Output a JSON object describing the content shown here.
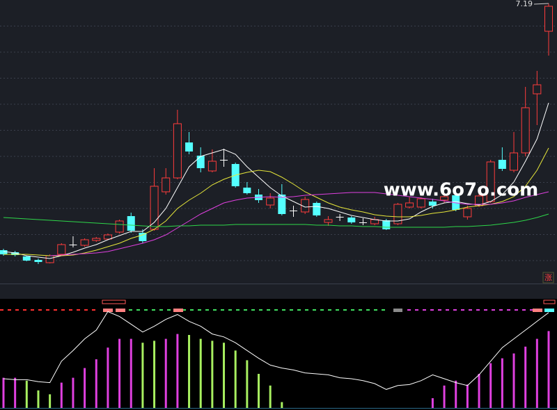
{
  "chart_data": {
    "type": "candlestick",
    "ylim": [
      3.14,
      7.24
    ],
    "up_color": "#ff3c3c",
    "down_color": "#54ffff",
    "flat_color": "#ffffff",
    "open": [
      3.64,
      3.61,
      3.55,
      3.5,
      3.46,
      3.58,
      3.72,
      3.71,
      3.78,
      3.8,
      3.9,
      4.13,
      3.89,
      3.94,
      4.48,
      4.68,
      5.19,
      5.0,
      4.78,
      4.94,
      4.88,
      4.54,
      4.44,
      4.29,
      4.44,
      4.21,
      4.19,
      4.32,
      4.04,
      4.12,
      4.11,
      4.04,
      4.02,
      4.07,
      4.02,
      4.26,
      4.26,
      4.34,
      4.36,
      4.43,
      4.12,
      4.28,
      4.34,
      4.94,
      4.79,
      5.04,
      5.89,
      6.79
    ],
    "high": [
      3.66,
      3.63,
      3.56,
      3.52,
      3.58,
      3.74,
      3.84,
      3.81,
      3.83,
      3.88,
      4.08,
      4.18,
      3.94,
      4.82,
      4.82,
      5.66,
      5.34,
      5.12,
      5.09,
      5.1,
      4.9,
      4.62,
      4.52,
      4.46,
      4.59,
      4.28,
      4.41,
      4.34,
      4.13,
      4.16,
      4.13,
      4.1,
      4.12,
      4.09,
      4.32,
      4.4,
      4.4,
      4.38,
      4.46,
      4.46,
      4.28,
      4.46,
      4.94,
      5.12,
      5.34,
      5.99,
      6.22,
      7.19
    ],
    "low": [
      3.56,
      3.55,
      3.48,
      3.44,
      3.45,
      3.57,
      3.68,
      3.69,
      3.76,
      3.79,
      3.88,
      3.89,
      3.74,
      3.92,
      4.44,
      4.66,
      5.02,
      4.76,
      4.76,
      4.84,
      4.54,
      4.44,
      4.32,
      4.24,
      4.14,
      4.12,
      4.16,
      4.12,
      3.99,
      4.06,
      4.02,
      4.0,
      4.0,
      3.93,
      4.0,
      4.24,
      4.24,
      4.24,
      4.32,
      4.2,
      4.08,
      4.26,
      4.32,
      4.78,
      4.76,
      4.99,
      5.44,
      6.44
    ],
    "close": [
      3.58,
      3.57,
      3.49,
      3.47,
      3.56,
      3.72,
      3.72,
      3.79,
      3.81,
      3.86,
      4.06,
      3.92,
      3.77,
      4.56,
      4.68,
      5.46,
      5.06,
      4.82,
      4.92,
      4.94,
      4.56,
      4.46,
      4.36,
      4.39,
      4.16,
      4.21,
      4.37,
      4.14,
      4.08,
      4.12,
      4.04,
      4.04,
      4.08,
      3.94,
      4.3,
      4.32,
      4.38,
      4.28,
      4.41,
      4.22,
      4.24,
      4.42,
      4.91,
      4.81,
      5.04,
      5.69,
      6.02,
      7.15
    ],
    "ma_lines": [
      {
        "color": "#ffffff",
        "values": [
          3.62,
          3.6,
          3.56,
          3.54,
          3.52,
          3.56,
          3.61,
          3.67,
          3.72,
          3.79,
          3.85,
          3.91,
          3.91,
          4.04,
          4.24,
          4.54,
          4.84,
          4.99,
          5.04,
          5.09,
          5.02,
          4.84,
          4.69,
          4.54,
          4.42,
          4.34,
          4.26,
          4.27,
          4.24,
          4.19,
          4.14,
          4.11,
          4.08,
          4.06,
          4.06,
          4.09,
          4.19,
          4.27,
          4.32,
          4.34,
          4.31,
          4.29,
          4.34,
          4.44,
          4.62,
          4.92,
          5.24,
          5.76
        ]
      },
      {
        "color": "#e8e83a",
        "values": [
          3.58,
          3.58,
          3.58,
          3.57,
          3.56,
          3.56,
          3.57,
          3.6,
          3.64,
          3.69,
          3.74,
          3.81,
          3.86,
          3.94,
          4.06,
          4.24,
          4.36,
          4.46,
          4.58,
          4.66,
          4.72,
          4.76,
          4.79,
          4.77,
          4.69,
          4.59,
          4.48,
          4.4,
          4.32,
          4.26,
          4.22,
          4.19,
          4.15,
          4.13,
          4.12,
          4.12,
          4.14,
          4.17,
          4.19,
          4.22,
          4.26,
          4.28,
          4.3,
          4.34,
          4.41,
          4.56,
          4.79,
          5.11
        ]
      },
      {
        "color": "#e040e0",
        "values": [
          null,
          null,
          null,
          null,
          3.56,
          3.57,
          3.58,
          3.59,
          3.6,
          3.62,
          3.66,
          3.7,
          3.74,
          3.79,
          3.86,
          3.96,
          4.06,
          4.16,
          4.24,
          4.32,
          4.36,
          4.39,
          4.4,
          4.41,
          4.4,
          4.41,
          4.43,
          4.44,
          4.45,
          4.46,
          4.47,
          4.47,
          4.47,
          4.45,
          4.43,
          4.41,
          4.39,
          4.37,
          4.35,
          4.32,
          4.3,
          4.3,
          4.3,
          4.32,
          4.35,
          4.4,
          4.44,
          4.48
        ]
      },
      {
        "color": "#2ed84a",
        "values": [
          4.11,
          4.1,
          4.09,
          4.08,
          4.07,
          4.06,
          4.05,
          4.04,
          4.03,
          4.02,
          4.01,
          4.0,
          3.99,
          3.98,
          3.98,
          3.99,
          3.99,
          4.0,
          4.0,
          4.0,
          4.01,
          4.01,
          4.01,
          4.01,
          4.01,
          4.01,
          4.01,
          4.0,
          4.0,
          3.99,
          3.99,
          3.98,
          3.98,
          3.97,
          3.97,
          3.97,
          3.97,
          3.97,
          3.97,
          3.98,
          3.98,
          3.99,
          4.0,
          4.02,
          4.04,
          4.07,
          4.11,
          4.16
        ]
      }
    ],
    "max_price_label": 7.19,
    "watermark": "www.6o7o.com",
    "badge": "涨",
    "indicator": {
      "ylim": [
        0,
        100
      ],
      "bars": [
        31,
        31,
        28,
        18,
        14,
        26,
        31,
        41,
        50,
        62,
        71,
        71,
        67,
        69,
        71,
        76,
        75,
        71,
        69,
        67,
        59,
        49,
        35,
        23,
        6,
        null,
        null,
        null,
        null,
        null,
        null,
        null,
        null,
        null,
        null,
        null,
        null,
        10,
        23,
        28,
        24,
        35,
        46,
        51,
        56,
        63,
        71,
        79
      ],
      "bar_colors": [
        "#e040e0",
        "#e040e0",
        "#a8f060",
        "#a8f060",
        "#a8f060",
        "#e040e0",
        "#e040e0",
        "#e040e0",
        "#e040e0",
        "#e040e0",
        "#e040e0",
        "#e040e0",
        "#a8f060",
        "#a8f060",
        "#e040e0",
        "#e040e0",
        "#a8f060",
        "#a8f060",
        "#a8f060",
        "#a8f060",
        "#a8f060",
        "#a8f060",
        "#a8f060",
        "#a8f060",
        "#a8f060",
        null,
        null,
        null,
        null,
        null,
        null,
        null,
        null,
        null,
        null,
        null,
        null,
        "#e040e0",
        "#e040e0",
        "#e040e0",
        "#e040e0",
        "#e040e0",
        "#e040e0",
        "#e040e0",
        "#e040e0",
        "#e040e0",
        "#e040e0",
        "#e040e0"
      ],
      "line_color": "#ffffff",
      "line": [
        30,
        29,
        29,
        27,
        26,
        48,
        59,
        71,
        80,
        99,
        94,
        86,
        78,
        84,
        91,
        96,
        89,
        84,
        76,
        73,
        67,
        59,
        51,
        44,
        41,
        39,
        36,
        35,
        34,
        31,
        30,
        28,
        25,
        19,
        23,
        24,
        28,
        34,
        30,
        26,
        23,
        34,
        48,
        62,
        71,
        80,
        89,
        98
      ]
    }
  }
}
